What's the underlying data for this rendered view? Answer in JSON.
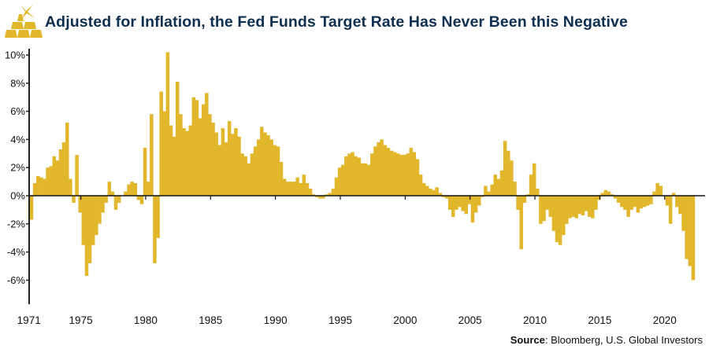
{
  "header": {
    "title": "Adjusted for Inflation, the Fed Funds Target Rate Has Never Been this Negative",
    "logo": "gold-bars-logo"
  },
  "footer": {
    "source_label": "Source",
    "source_text": ": Bloomberg, U.S. Global Investors"
  },
  "colors": {
    "bar": "#e2b72c",
    "title": "#0e2f4f",
    "axis": "#222222"
  },
  "chart_data": {
    "type": "bar",
    "title": "Adjusted for Inflation, the Fed Funds Target Rate Has Never Been this Negative",
    "xlabel": "",
    "ylabel": "",
    "ylim": [
      -8,
      10
    ],
    "xlim": [
      1971,
      2022.2
    ],
    "grid": false,
    "legend": "none",
    "y_ticks": [
      "10%",
      "8%",
      "6%",
      "4%",
      "2%",
      "0%",
      "-2%",
      "-4%",
      "-6%"
    ],
    "y_tick_values": [
      10,
      8,
      6,
      4,
      2,
      0,
      -2,
      -4,
      -6
    ],
    "x_ticks": [
      "1971",
      "1975",
      "1980",
      "1985",
      "1990",
      "1995",
      "2000",
      "2005",
      "2010",
      "2015",
      "2020"
    ],
    "x_tick_values": [
      1971,
      1975,
      1980,
      1985,
      1990,
      1995,
      2000,
      2005,
      2010,
      2015,
      2020
    ],
    "frequency": "quarterly",
    "start": 1971,
    "values": [
      -1.7,
      0.9,
      1.4,
      1.3,
      1.2,
      2.0,
      2.1,
      2.8,
      2.5,
      3.3,
      3.8,
      5.2,
      1.2,
      -0.5,
      2.9,
      -1.2,
      -3.5,
      -5.7,
      -4.8,
      -3.5,
      -2.8,
      -2.0,
      -1.2,
      -0.5,
      1.0,
      0.3,
      -1.0,
      -0.5,
      0.0,
      0.3,
      0.8,
      1.0,
      0.9,
      -0.3,
      -0.6,
      3.4,
      1.0,
      5.8,
      -4.8,
      -3.0,
      7.4,
      6.0,
      10.2,
      5.0,
      4.2,
      8.1,
      5.8,
      4.8,
      4.6,
      5.0,
      7.0,
      6.8,
      5.5,
      6.5,
      7.3,
      5.8,
      5.2,
      4.5,
      3.6,
      4.8,
      3.8,
      5.3,
      4.4,
      4.8,
      4.2,
      3.0,
      2.8,
      2.3,
      3.0,
      3.5,
      4.0,
      4.9,
      4.5,
      4.3,
      4.0,
      3.6,
      3.5,
      2.4,
      1.2,
      1.0,
      1.0,
      1.0,
      1.3,
      0.9,
      1.5,
      0.9,
      0.5,
      0.1,
      -0.1,
      -0.2,
      -0.2,
      0.1,
      0.2,
      0.5,
      1.3,
      2.0,
      2.2,
      2.8,
      3.0,
      3.1,
      2.8,
      2.7,
      2.3,
      2.3,
      2.2,
      3.0,
      3.5,
      3.8,
      4.0,
      3.6,
      3.4,
      3.2,
      3.1,
      3.0,
      2.9,
      2.9,
      3.0,
      3.4,
      3.1,
      2.6,
      1.5,
      0.9,
      0.7,
      0.5,
      0.4,
      0.6,
      0.2,
      -0.1,
      -0.2,
      -1.0,
      -1.5,
      -1.0,
      -0.8,
      -1.1,
      -1.3,
      -0.6,
      -1.9,
      -1.2,
      -0.7,
      -0.1,
      0.7,
      0.3,
      0.8,
      1.5,
      1.2,
      1.8,
      3.9,
      3.2,
      2.5,
      1.0,
      -1.0,
      -3.8,
      -0.5,
      0.1,
      1.5,
      2.3,
      0.5,
      -2.0,
      -1.8,
      -1.0,
      -1.5,
      -2.5,
      -3.3,
      -3.5,
      -2.8,
      -2.0,
      -1.6,
      -1.5,
      -1.6,
      -1.3,
      -1.4,
      -1.1,
      -1.5,
      -1.6,
      -1.0,
      -0.3,
      0.2,
      0.4,
      0.3,
      0.1,
      -0.2,
      -0.5,
      -0.8,
      -1.0,
      -1.5,
      -1.0,
      -0.8,
      -1.2,
      -0.9,
      -0.8,
      -0.7,
      -0.6,
      0.3,
      0.9,
      0.7,
      0.0,
      -0.7,
      -2.0,
      0.2,
      -0.8,
      -1.3,
      -2.5,
      -4.5,
      -5.0,
      -6.0
    ]
  }
}
